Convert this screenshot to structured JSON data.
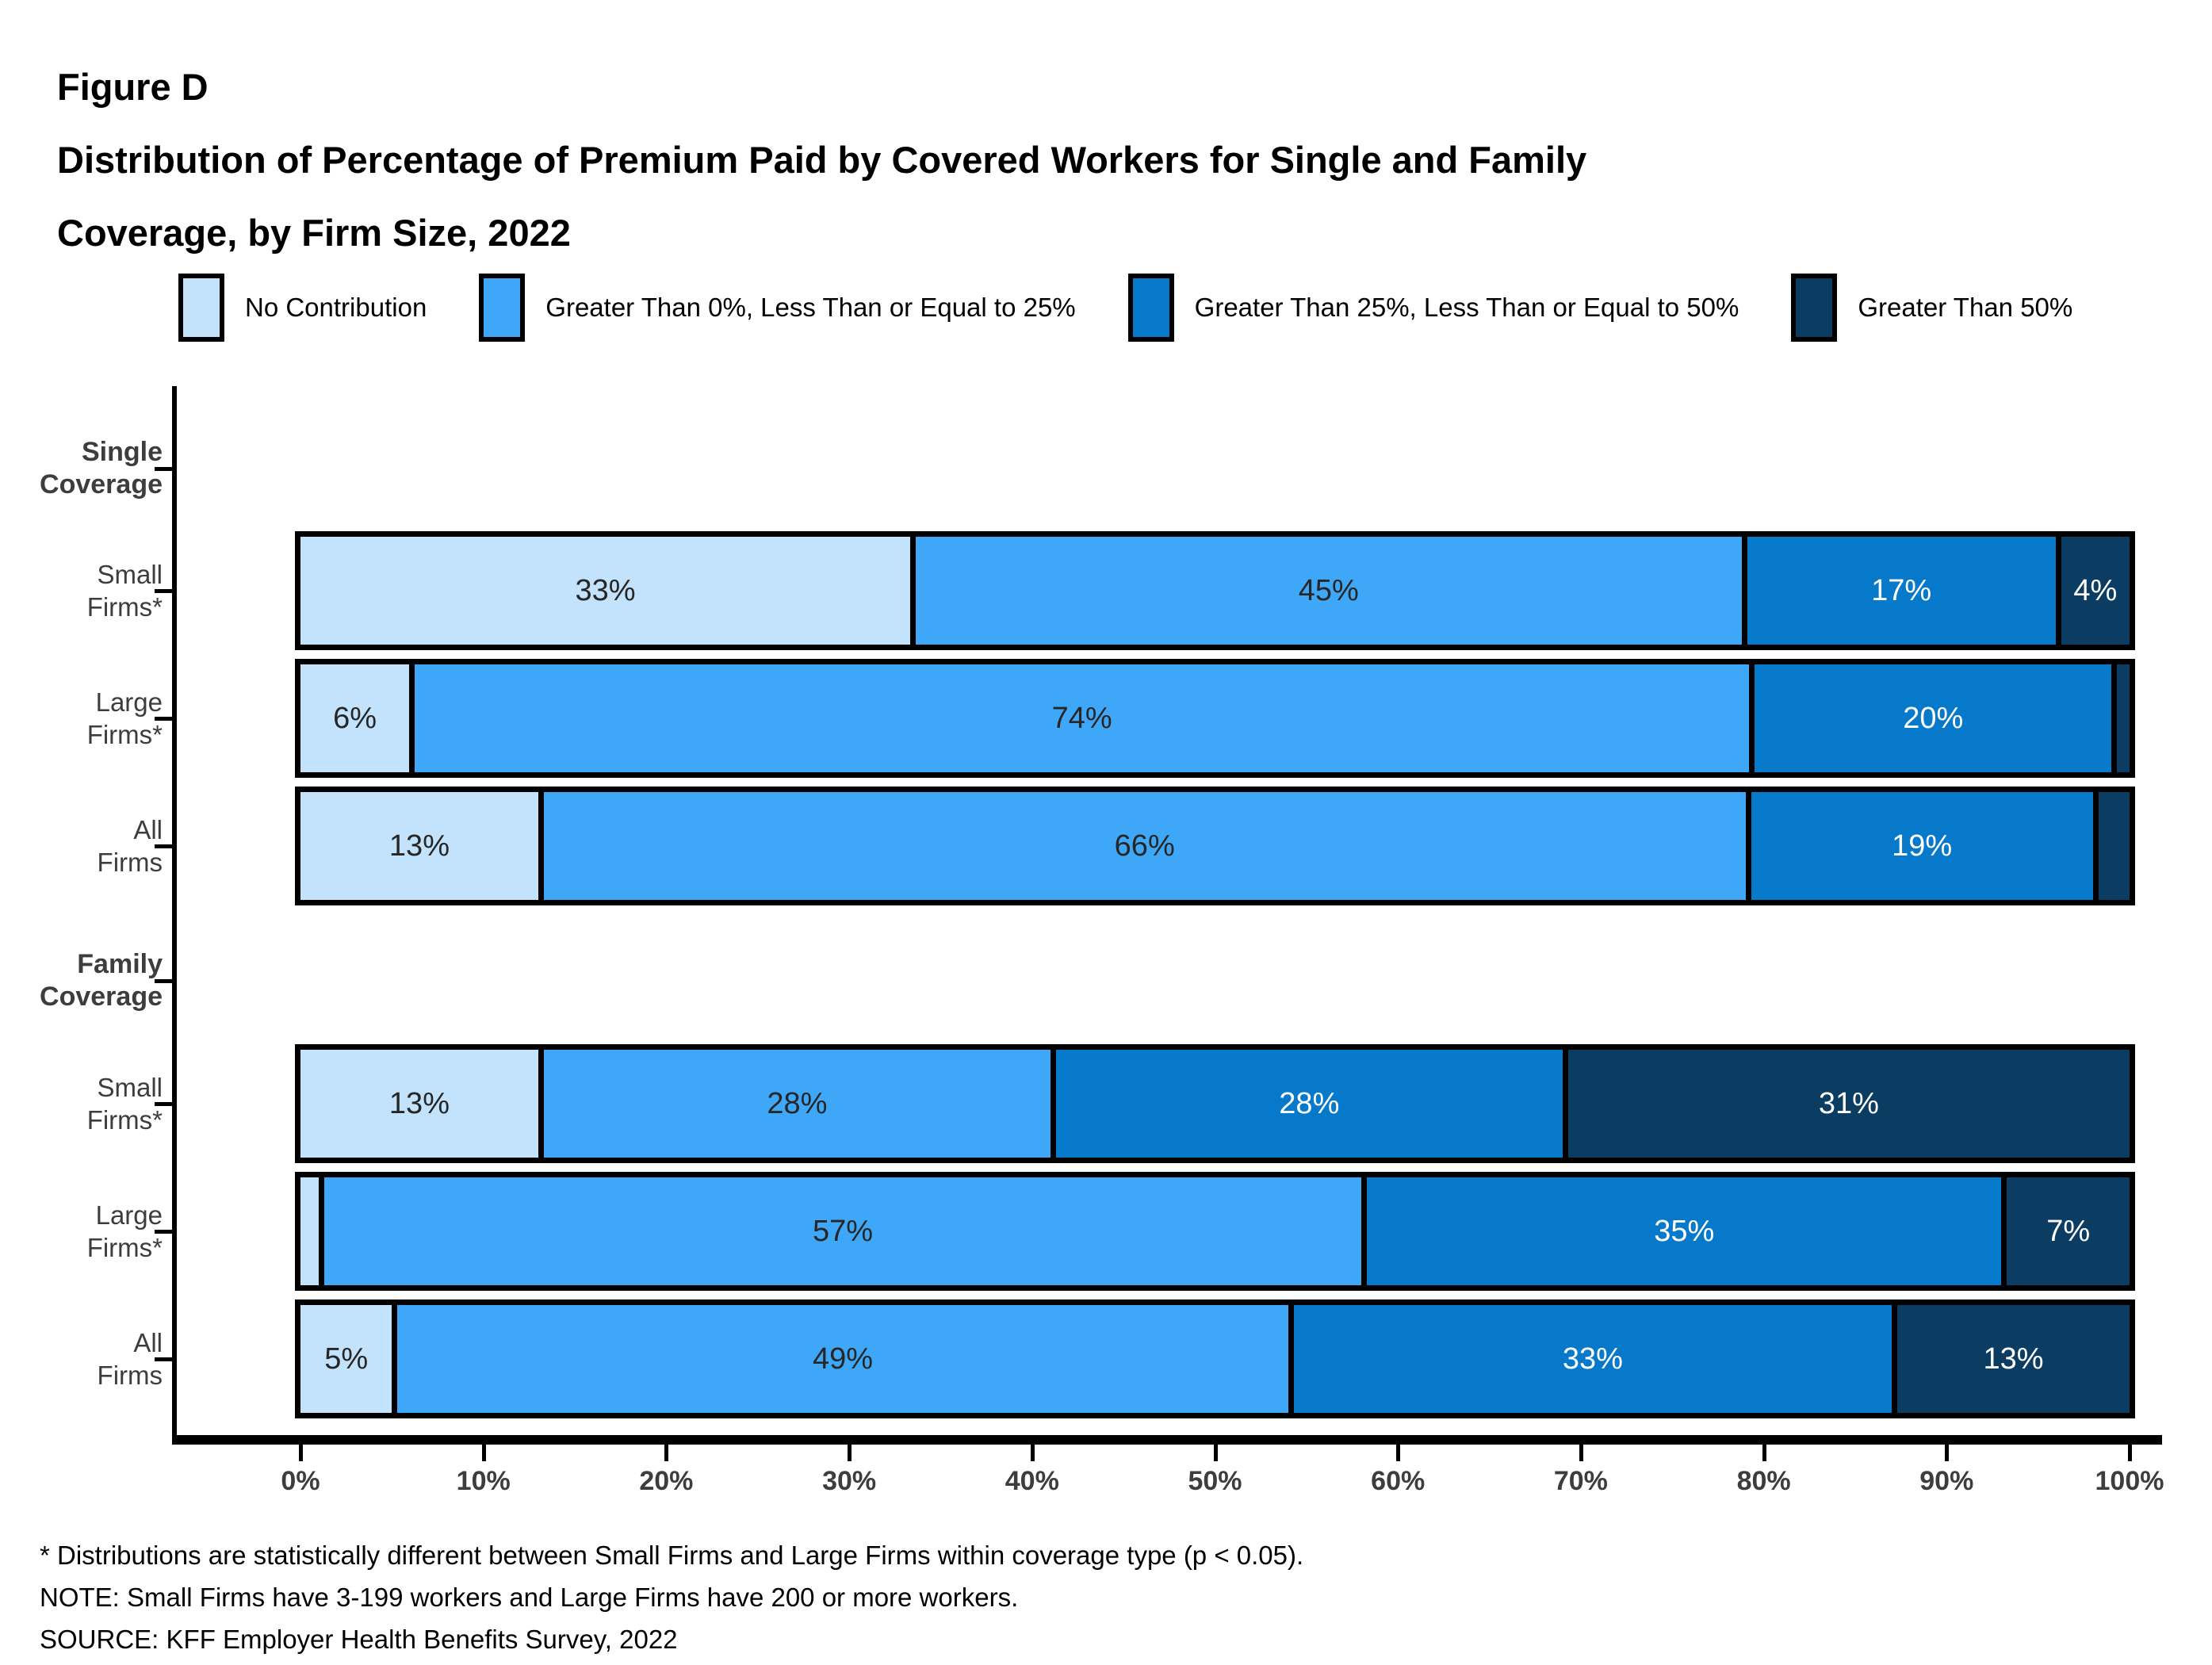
{
  "title": {
    "figure": "Figure D",
    "line1": "Distribution of Percentage of Premium Paid by Covered Workers for Single and Family",
    "line2": "Coverage, by Firm Size, 2022"
  },
  "colors": {
    "no_contribution": "#C2E3FB",
    "gt0_le25": "#3FA7F8",
    "gt25_le50": "#0779CB",
    "gt50": "#0B3C61",
    "axis_text": "#3D3D3D",
    "bar_label_dark": "#262626",
    "bar_label_light": "#FFFFFF",
    "border": "#000000"
  },
  "legend": {
    "items": [
      {
        "label": "No Contribution",
        "color": "#C2E3FB"
      },
      {
        "label": "Greater Than 0%, Less Than or Equal to 25%",
        "color": "#3FA7F8"
      },
      {
        "label": "Greater Than 25%, Less Than or Equal to 50%",
        "color": "#0779CB"
      },
      {
        "label": "Greater Than 50%",
        "color": "#0B3C61"
      }
    ]
  },
  "chart_data": {
    "type": "bar",
    "stacked": true,
    "orientation": "horizontal",
    "title": "Distribution of Percentage of Premium Paid by Covered Workers for Single and Family Coverage, by Firm Size, 2022",
    "legend_position": "top",
    "grid": false,
    "x_axis": {
      "range": [
        0,
        100
      ],
      "ticks": [
        "0%",
        "10%",
        "20%",
        "30%",
        "40%",
        "50%",
        "60%",
        "70%",
        "80%",
        "90%",
        "100%"
      ]
    },
    "groups": [
      {
        "label_lines": [
          "Single",
          "Coverage"
        ]
      },
      {
        "label_lines": [
          "Family",
          "Coverage"
        ]
      }
    ],
    "categories": [
      "Single Coverage - Small Firms*",
      "Single Coverage - Large Firms*",
      "Single Coverage - All Firms",
      "Family Coverage - Small Firms*",
      "Family Coverage - Large Firms*",
      "Family Coverage - All Firms"
    ],
    "category_label_lines": [
      [
        "Small",
        "Firms*"
      ],
      [
        "Large",
        "Firms*"
      ],
      [
        "All",
        "Firms"
      ],
      [
        "Small",
        "Firms*"
      ],
      [
        "Large",
        "Firms*"
      ],
      [
        "All",
        "Firms"
      ]
    ],
    "series": [
      {
        "name": "No Contribution",
        "color": "#C2E3FB",
        "label_style": "dark",
        "values": [
          33,
          6,
          13,
          13,
          1,
          5
        ]
      },
      {
        "name": "Greater Than 0%, Less Than or Equal to 25%",
        "color": "#3FA7F8",
        "label_style": "dark",
        "values": [
          45,
          74,
          66,
          28,
          57,
          49
        ]
      },
      {
        "name": "Greater Than 25%, Less Than or Equal to 50%",
        "color": "#0779CB",
        "label_style": "white",
        "values": [
          17,
          20,
          19,
          28,
          35,
          33
        ]
      },
      {
        "name": "Greater Than 50%",
        "color": "#0B3C61",
        "label_style": "white",
        "values": [
          4,
          1,
          2,
          31,
          7,
          13
        ]
      }
    ],
    "value_labels": [
      [
        "33%",
        "45%",
        "17%",
        "4%"
      ],
      [
        "6%",
        "74%",
        "20%",
        ""
      ],
      [
        "13%",
        "66%",
        "19%",
        ""
      ],
      [
        "13%",
        "28%",
        "28%",
        "31%"
      ],
      [
        "",
        "57%",
        "35%",
        "7%"
      ],
      [
        "5%",
        "49%",
        "33%",
        "13%"
      ]
    ]
  },
  "footnotes": [
    "* Distributions are statistically different between Small Firms and Large Firms within coverage type (p < 0.05).",
    "NOTE: Small Firms have 3-199 workers and Large Firms have 200 or more workers.",
    "SOURCE: KFF Employer Health Benefits Survey, 2022"
  ]
}
